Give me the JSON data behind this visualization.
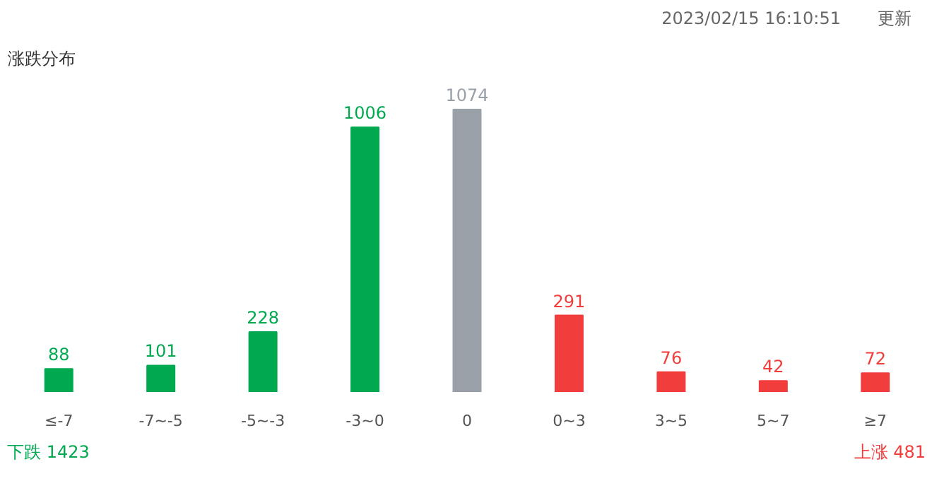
{
  "chart_data": {
    "type": "bar",
    "title": "涨跌分布",
    "categories": [
      "≤-7",
      "-7~-5",
      "-5~-3",
      "-3~0",
      "0",
      "0~3",
      "3~5",
      "5~7",
      "≥7"
    ],
    "values": [
      88,
      101,
      228,
      1006,
      1074,
      291,
      76,
      42,
      72
    ],
    "colors": [
      "#00a94f",
      "#00a94f",
      "#00a94f",
      "#00a94f",
      "#9aa0a8",
      "#f23d3d",
      "#f23d3d",
      "#f23d3d",
      "#f23d3d"
    ],
    "data_labels": true,
    "grid": false,
    "annotations": [
      "2023/02/15 16:10:51",
      "更新",
      "下跌 1423",
      "上涨 481"
    ]
  }
}
